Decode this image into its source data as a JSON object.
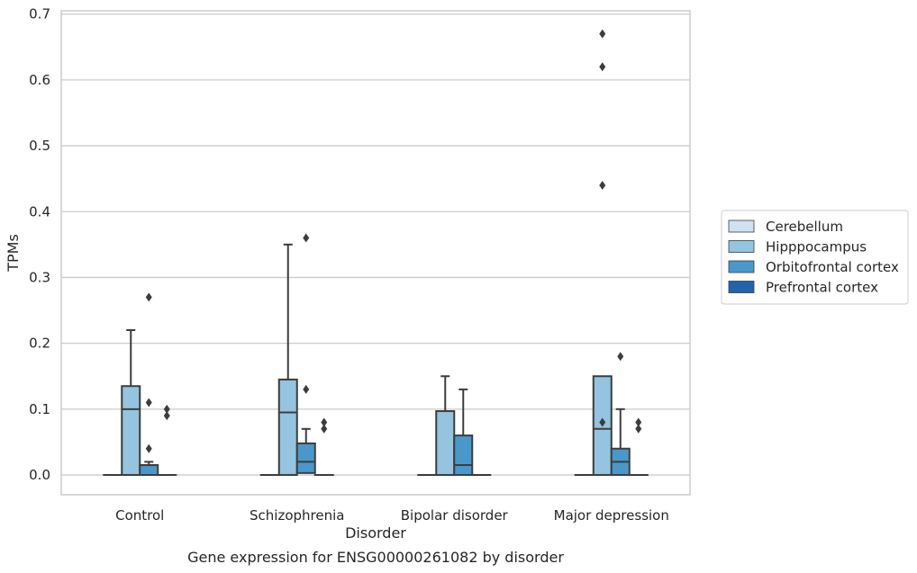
{
  "chart_data": {
    "type": "box",
    "title": "Gene expression for ENSG00000261082 by disorder",
    "xlabel": "Disorder",
    "ylabel": "TPMs",
    "ylim": [
      -0.03,
      0.705
    ],
    "yticks": [
      0.0,
      0.1,
      0.2,
      0.3,
      0.4,
      0.5,
      0.6,
      0.7
    ],
    "ytick_labels": [
      "0.0",
      "0.1",
      "0.2",
      "0.3",
      "0.4",
      "0.5",
      "0.6",
      "0.7"
    ],
    "categories": [
      "Control",
      "Schizophrenia",
      "Bipolar disorder",
      "Major depression"
    ],
    "grid": "horizontal",
    "legend_placement": "right",
    "series": [
      {
        "name": "Cerebellum",
        "color": "#d0e1f2",
        "boxes": [
          {
            "q1": 0,
            "median": 0,
            "q3": 0,
            "whislo": 0,
            "whishi": 0,
            "fliers": []
          },
          {
            "q1": 0,
            "median": 0,
            "q3": 0,
            "whislo": 0,
            "whishi": 0,
            "fliers": []
          },
          {
            "q1": 0,
            "median": 0,
            "q3": 0,
            "whislo": 0,
            "whishi": 0,
            "fliers": []
          },
          {
            "q1": 0,
            "median": 0,
            "q3": 0,
            "whislo": 0,
            "whishi": 0,
            "fliers": []
          }
        ]
      },
      {
        "name": "Hipppocampus",
        "color": "#94c4df",
        "boxes": [
          {
            "q1": 0,
            "median": 0.1,
            "q3": 0.135,
            "whislo": 0,
            "whishi": 0.22,
            "fliers": []
          },
          {
            "q1": 0,
            "median": 0.095,
            "q3": 0.145,
            "whislo": 0,
            "whishi": 0.35,
            "fliers": []
          },
          {
            "q1": 0,
            "median": 0,
            "q3": 0.097,
            "whislo": 0,
            "whishi": 0.15,
            "fliers": []
          },
          {
            "q1": 0,
            "median": 0.07,
            "q3": 0.15,
            "whislo": 0,
            "whishi": 0.15,
            "fliers": [
              0.08,
              0.44,
              0.62,
              0.67
            ]
          }
        ]
      },
      {
        "name": "Orbitofrontal cortex",
        "color": "#4a98c9",
        "boxes": [
          {
            "q1": 0,
            "median": 0.015,
            "q3": 0.015,
            "whislo": 0,
            "whishi": 0.02,
            "fliers": [
              0.04,
              0.11,
              0.27
            ]
          },
          {
            "q1": 0.003,
            "median": 0.02,
            "q3": 0.048,
            "whislo": 0.003,
            "whishi": 0.07,
            "fliers": [
              0.13,
              0.36
            ]
          },
          {
            "q1": 0,
            "median": 0.015,
            "q3": 0.06,
            "whislo": 0,
            "whishi": 0.13,
            "fliers": []
          },
          {
            "q1": 0,
            "median": 0.02,
            "q3": 0.04,
            "whislo": 0,
            "whishi": 0.1,
            "fliers": [
              0.18
            ]
          }
        ]
      },
      {
        "name": "Prefrontal cortex",
        "color": "#2164ab",
        "boxes": [
          {
            "q1": 0,
            "median": 0,
            "q3": 0,
            "whislo": 0,
            "whishi": 0,
            "fliers": [
              0.09,
              0.1
            ]
          },
          {
            "q1": 0,
            "median": 0,
            "q3": 0,
            "whislo": 0,
            "whishi": 0,
            "fliers": [
              0.07,
              0.08
            ]
          },
          {
            "q1": 0,
            "median": 0,
            "q3": 0,
            "whislo": 0,
            "whishi": 0,
            "fliers": []
          },
          {
            "q1": 0,
            "median": 0,
            "q3": 0,
            "whislo": 0,
            "whishi": 0,
            "fliers": [
              0.07,
              0.08
            ]
          }
        ]
      }
    ]
  }
}
